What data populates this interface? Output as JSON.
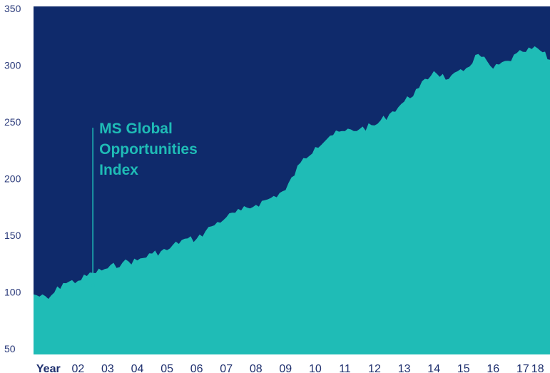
{
  "chart_data": {
    "type": "area",
    "series": [
      {
        "name": "MS Global Opportunities Index",
        "x": [
          "2001-01",
          "2001-07",
          "2002-01",
          "2002-07",
          "2003-01",
          "2003-07",
          "2004-01",
          "2004-07",
          "2005-01",
          "2005-07",
          "2006-01",
          "2006-07",
          "2007-01",
          "2007-07",
          "2008-01",
          "2008-07",
          "2009-01",
          "2009-07",
          "2010-01",
          "2010-07",
          "2011-01",
          "2011-07",
          "2012-01",
          "2012-07",
          "2013-01",
          "2013-07",
          "2014-01",
          "2014-07",
          "2015-01",
          "2015-07",
          "2016-01",
          "2016-07",
          "2017-01",
          "2017-07",
          "2018-01",
          "2018-06"
        ],
        "values": [
          98,
          94,
          108,
          110,
          117,
          121,
          126,
          128,
          134,
          137,
          146,
          147,
          158,
          166,
          172,
          177,
          183,
          190,
          214,
          228,
          238,
          242,
          244,
          247,
          257,
          268,
          280,
          295,
          288,
          295,
          310,
          297,
          304,
          312,
          315,
          305
        ]
      }
    ],
    "xlim": [
      "2001-01",
      "2018-06"
    ],
    "ylim": [
      45,
      352
    ],
    "yticks": [
      50,
      100,
      150,
      200,
      250,
      300,
      350
    ],
    "xtick_labels": [
      {
        "x": "2001-07",
        "label": "Year"
      },
      {
        "x": "2002-07",
        "label": "02"
      },
      {
        "x": "2003-07",
        "label": "03"
      },
      {
        "x": "2004-07",
        "label": "04"
      },
      {
        "x": "2005-07",
        "label": "05"
      },
      {
        "x": "2006-07",
        "label": "06"
      },
      {
        "x": "2007-07",
        "label": "07"
      },
      {
        "x": "2008-07",
        "label": "08"
      },
      {
        "x": "2009-07",
        "label": "09"
      },
      {
        "x": "2010-07",
        "label": "10"
      },
      {
        "x": "2011-07",
        "label": "11"
      },
      {
        "x": "2012-07",
        "label": "12"
      },
      {
        "x": "2013-07",
        "label": "13"
      },
      {
        "x": "2014-07",
        "label": "14"
      },
      {
        "x": "2015-07",
        "label": "15"
      },
      {
        "x": "2016-07",
        "label": "16"
      },
      {
        "x": "2017-07",
        "label": "17"
      },
      {
        "x": "2018-01",
        "label": "18"
      }
    ],
    "annotation": {
      "lines": [
        "MS Global",
        "Opportunities",
        "Index"
      ],
      "x": "2003-01",
      "y": 106
    },
    "grid": false,
    "colors": {
      "background": "#0f2a6b",
      "area": "#1fbcb6",
      "tick_text": "#1e2f6e"
    }
  }
}
